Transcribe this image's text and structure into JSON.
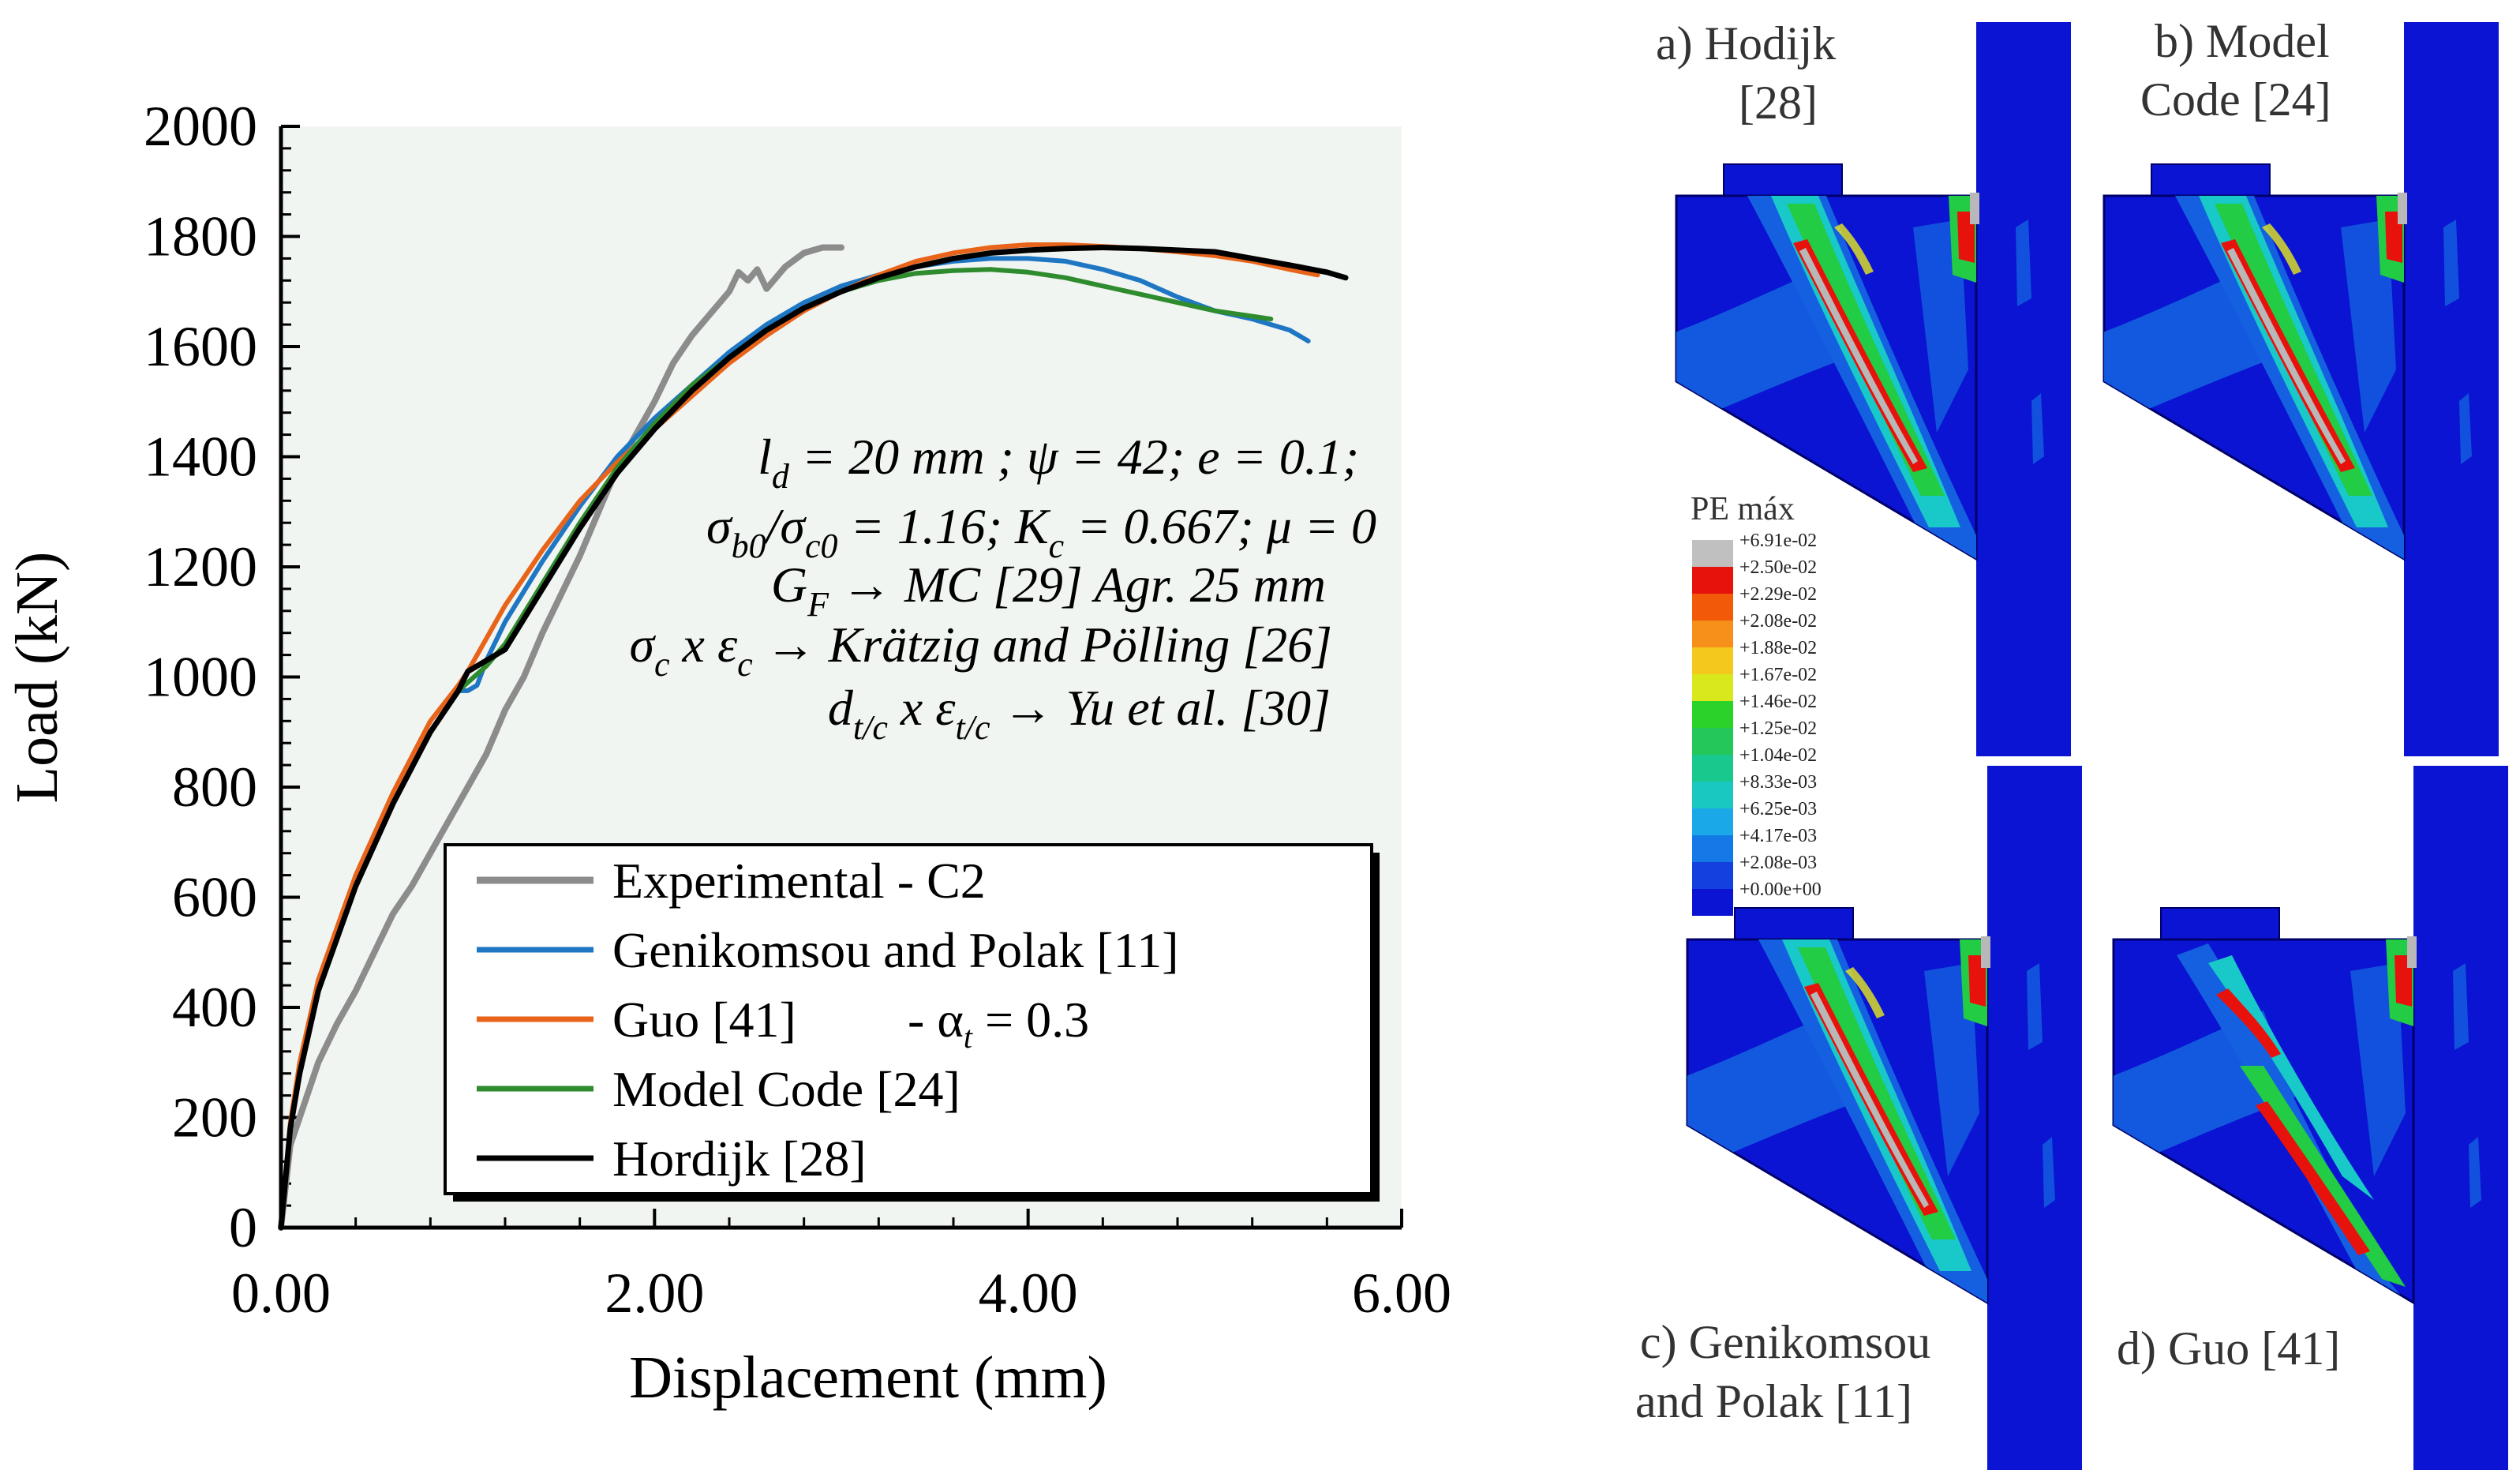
{
  "chart_data": {
    "type": "line",
    "xlabel": "Displacement (mm)",
    "ylabel": "Load (kN)",
    "xlim": [
      0,
      6
    ],
    "ylim": [
      0,
      2000
    ],
    "xticks": [
      "0.00",
      "2.00",
      "4.00",
      "6.00"
    ],
    "yticks": [
      "0",
      "200",
      "400",
      "600",
      "800",
      "1000",
      "1200",
      "1400",
      "1600",
      "1800",
      "2000"
    ],
    "annotation_lines": [
      "l_d = 20 mm ; ψ = 42; e = 0.1;",
      "σ_b0/σ_c0 = 1.16; K_c = 0.667; μ = 0",
      "G_F → MC [29] Agr. 25 mm",
      "σ_c x ε_c → Krätzig and Pölling [26]",
      "d_t/c x ε_t/c → Yu et al. [30]"
    ],
    "legend_position": "bottom-right",
    "series": [
      {
        "name": "Experimental - C2",
        "color": "#8c8c8c",
        "x": [
          0,
          0.05,
          0.1,
          0.2,
          0.3,
          0.4,
          0.5,
          0.6,
          0.7,
          0.8,
          0.9,
          1.0,
          1.1,
          1.2,
          1.3,
          1.4,
          1.5,
          1.6,
          1.7,
          1.8,
          1.9,
          2.0,
          2.1,
          2.2,
          2.3,
          2.4,
          2.45,
          2.5,
          2.55,
          2.6,
          2.7,
          2.8,
          2.9,
          3.0
        ],
        "y": [
          0,
          150,
          200,
          300,
          370,
          430,
          500,
          570,
          620,
          680,
          740,
          800,
          860,
          940,
          1000,
          1080,
          1150,
          1220,
          1300,
          1380,
          1440,
          1500,
          1570,
          1620,
          1660,
          1700,
          1735,
          1720,
          1740,
          1705,
          1745,
          1770,
          1780,
          1780
        ]
      },
      {
        "name": "Genikomsou and Polak [11]",
        "color": "#1f77c4",
        "x": [
          0,
          0.05,
          0.1,
          0.2,
          0.4,
          0.6,
          0.8,
          0.95,
          1.0,
          1.05,
          1.1,
          1.2,
          1.4,
          1.6,
          1.8,
          2.0,
          2.2,
          2.4,
          2.6,
          2.8,
          3.0,
          3.2,
          3.4,
          3.6,
          3.8,
          4.0,
          4.2,
          4.4,
          4.6,
          4.8,
          5.0,
          5.2,
          5.4,
          5.5
        ],
        "y": [
          0,
          180,
          280,
          430,
          620,
          770,
          900,
          975,
          975,
          985,
          1030,
          1100,
          1210,
          1310,
          1400,
          1470,
          1530,
          1590,
          1640,
          1680,
          1710,
          1730,
          1745,
          1755,
          1760,
          1760,
          1755,
          1740,
          1720,
          1690,
          1665,
          1650,
          1630,
          1610
        ]
      },
      {
        "name": "Guo [41]",
        "color": "#e8641a",
        "x": [
          0,
          0.05,
          0.1,
          0.2,
          0.4,
          0.6,
          0.8,
          0.95,
          1.0,
          1.2,
          1.4,
          1.6,
          1.8,
          2.0,
          2.2,
          2.4,
          2.6,
          2.8,
          3.0,
          3.2,
          3.4,
          3.6,
          3.8,
          4.0,
          4.2,
          4.4,
          4.6,
          4.8,
          5.0,
          5.2,
          5.4,
          5.55
        ],
        "y": [
          0,
          190,
          300,
          450,
          640,
          790,
          920,
          985,
          1010,
          1130,
          1230,
          1320,
          1390,
          1450,
          1510,
          1570,
          1620,
          1665,
          1700,
          1730,
          1755,
          1770,
          1780,
          1785,
          1785,
          1782,
          1778,
          1772,
          1765,
          1755,
          1740,
          1730
        ]
      },
      {
        "name": "Model Code [24]",
        "color": "#2e8b2e",
        "x": [
          0,
          0.05,
          0.1,
          0.2,
          0.4,
          0.6,
          0.8,
          0.95,
          1.0,
          1.1,
          1.2,
          1.4,
          1.6,
          1.8,
          2.0,
          2.2,
          2.4,
          2.6,
          2.8,
          3.0,
          3.2,
          3.4,
          3.6,
          3.8,
          4.0,
          4.2,
          4.4,
          4.6,
          4.8,
          5.0,
          5.2,
          5.3
        ],
        "y": [
          0,
          180,
          280,
          430,
          620,
          770,
          900,
          975,
          990,
          1020,
          1060,
          1170,
          1280,
          1380,
          1460,
          1530,
          1580,
          1630,
          1670,
          1700,
          1720,
          1733,
          1738,
          1740,
          1735,
          1725,
          1710,
          1695,
          1680,
          1665,
          1655,
          1650
        ]
      },
      {
        "name": "Hordijk [28]",
        "color": "#000000",
        "x": [
          0,
          0.05,
          0.1,
          0.2,
          0.4,
          0.6,
          0.8,
          0.95,
          1.0,
          1.1,
          1.2,
          1.4,
          1.6,
          1.8,
          2.0,
          2.2,
          2.4,
          2.6,
          2.8,
          3.0,
          3.2,
          3.4,
          3.6,
          3.8,
          4.0,
          4.2,
          4.4,
          4.6,
          4.8,
          5.0,
          5.2,
          5.4,
          5.6,
          5.7
        ],
        "y": [
          0,
          180,
          280,
          430,
          620,
          770,
          900,
          975,
          1010,
          1030,
          1050,
          1160,
          1270,
          1370,
          1450,
          1520,
          1580,
          1630,
          1670,
          1700,
          1725,
          1745,
          1760,
          1770,
          1775,
          1778,
          1780,
          1778,
          1775,
          1772,
          1760,
          1748,
          1735,
          1725
        ]
      }
    ]
  },
  "legend": {
    "entries": [
      {
        "label": "Experimental - C2",
        "color": "#8c8c8c"
      },
      {
        "label": "Genikomsou and Polak [11]",
        "color": "#1f77c4"
      },
      {
        "label": "Guo [41]",
        "color": "#e8641a",
        "suffix": "- α",
        "suffix_sub": "t",
        "suffix_value": "= 0.3"
      },
      {
        "label": "Model Code [24]",
        "color": "#2e8b2e"
      },
      {
        "label": "Hordijk [28]",
        "color": "#000000"
      }
    ]
  },
  "panels": {
    "a": {
      "line1": "a) Hodijk",
      "line2": "[28]"
    },
    "b": {
      "line1": "b) Model",
      "line2": "Code [24]"
    },
    "c": {
      "line1": "c) Genikomsou",
      "line2": "and Polak [11]"
    },
    "d": {
      "line1": "d) Guo [41]"
    }
  },
  "contour_legend": {
    "title": "PE máx",
    "values": [
      "+6.91e-02",
      "+2.50e-02",
      "+2.29e-02",
      "+2.08e-02",
      "+1.88e-02",
      "+1.67e-02",
      "+1.46e-02",
      "+1.25e-02",
      "+1.04e-02",
      "+8.33e-03",
      "+6.25e-03",
      "+4.17e-03",
      "+2.08e-03",
      "+0.00e+00"
    ],
    "colors": [
      "#c0c0c0",
      "#e8120c",
      "#f25a0a",
      "#f7901a",
      "#f5c81e",
      "#d8e81c",
      "#2ad22a",
      "#24c85a",
      "#19c88c",
      "#19c8c0",
      "#1aa8e8",
      "#1478e6",
      "#1440e0",
      "#0a14d2"
    ]
  },
  "colors": {
    "plot_bg": "#f1f5f2",
    "solid_blue": "#0a14d2",
    "mid_blue": "#1460e0",
    "cyan": "#19c8c8",
    "green": "#22cc44",
    "yellow": "#e8e81c",
    "red": "#e8120c",
    "gray": "#b8b8b8"
  }
}
